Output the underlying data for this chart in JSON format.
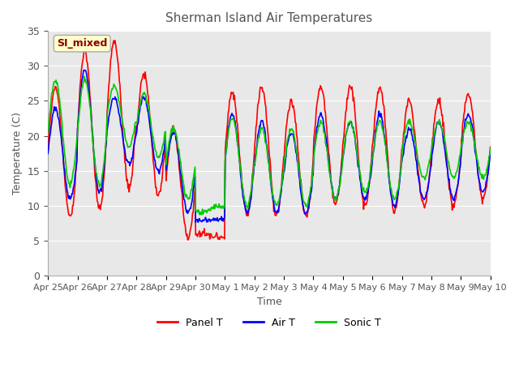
{
  "title": "Sherman Island Air Temperatures",
  "xlabel": "Time",
  "ylabel": "Temperature (C)",
  "ylim": [
    0,
    35
  ],
  "yticks": [
    0,
    5,
    10,
    15,
    20,
    25,
    30,
    35
  ],
  "xlabels": [
    "Apr 25",
    "Apr 26",
    "Apr 27",
    "Apr 28",
    "Apr 29",
    "Apr 30",
    "May 1",
    "May 2",
    "May 3",
    "May 4",
    "May 5",
    "May 6",
    "May 7",
    "May 8",
    "May 9",
    "May 10"
  ],
  "panel_color": "#ff0000",
  "air_color": "#0000ff",
  "sonic_color": "#00cc00",
  "annotation_text": "SI_mixed",
  "annotation_color": "#8b0000",
  "annotation_bg": "#ffffcc",
  "legend_items": [
    "Panel T",
    "Air T",
    "Sonic T"
  ],
  "line_width": 1.2,
  "n_days": 15,
  "pts_per_day": 48,
  "daily_peaks_panel": [
    27,
    32,
    33.5,
    29,
    21,
    6,
    26,
    27,
    25,
    27,
    27,
    27,
    25,
    25,
    26
  ],
  "daily_troughs_panel": [
    8.5,
    9.5,
    12.5,
    11.5,
    5.5,
    5.5,
    9,
    8.5,
    8.5,
    10,
    10,
    9,
    10,
    10,
    11
  ],
  "daily_peaks_air": [
    24,
    29.5,
    25.5,
    25.5,
    20.5,
    8,
    23,
    22,
    20.5,
    23,
    22,
    23,
    21,
    22,
    23
  ],
  "daily_troughs_air": [
    11,
    12,
    16,
    15,
    9,
    8,
    9,
    9,
    9,
    11,
    11,
    10,
    11,
    11,
    12
  ],
  "daily_peaks_sonic": [
    28,
    28,
    27,
    26,
    21,
    9,
    22.5,
    21,
    21,
    22,
    22,
    22,
    22,
    22,
    22
  ],
  "daily_troughs_sonic": [
    13,
    13,
    18.5,
    17,
    11,
    10,
    10,
    10,
    10,
    11,
    12,
    11,
    14,
    14,
    14
  ]
}
